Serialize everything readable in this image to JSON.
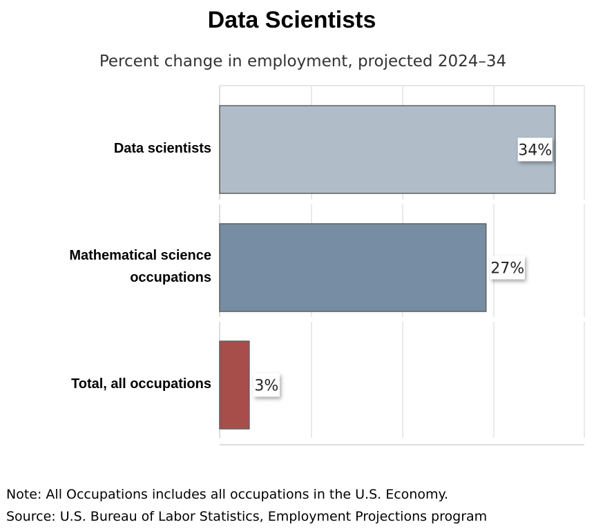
{
  "title": "Data Scientists",
  "subtitle": "Percent change in employment, projected 2024–34",
  "notes": {
    "note": "Note: All Occupations includes all occupations in the U.S. Economy.",
    "source": "Source: U.S. Bureau of Labor Statistics, Employment Projections program"
  },
  "chart_data": {
    "type": "bar",
    "orientation": "horizontal",
    "title": "Data Scientists",
    "subtitle": "Percent change in employment, projected 2024–34",
    "categories": [
      "Data scientists",
      "Mathematical science occupations",
      "Total, all occupations"
    ],
    "category_label_lines": [
      [
        "Data scientists"
      ],
      [
        "Mathematical science",
        "occupations"
      ],
      [
        "Total, all occupations"
      ]
    ],
    "values": [
      34,
      27,
      3
    ],
    "data_labels": [
      "34%",
      "27%",
      "3%"
    ],
    "bar_colors": [
      "#b0bcc8",
      "#778da3",
      "#a84e4a"
    ],
    "xlim": [
      0,
      35
    ],
    "grid": true,
    "legend": "none",
    "unit": "%"
  }
}
